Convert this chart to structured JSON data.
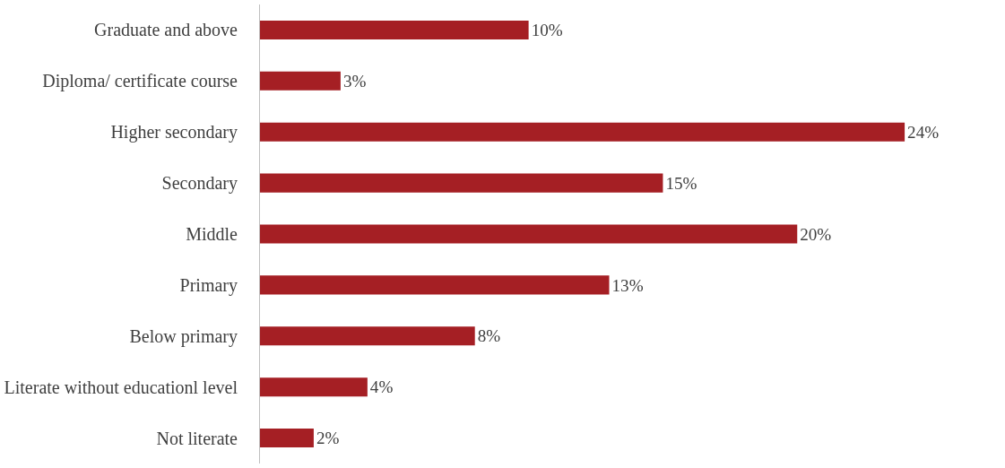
{
  "chart_data": {
    "type": "bar",
    "orientation": "horizontal",
    "categories": [
      "Graduate and above",
      "Diploma/ certificate course",
      "Higher secondary",
      "Secondary",
      "Middle",
      "Primary",
      "Below primary",
      "Literate without educationl level",
      "Not literate"
    ],
    "values": [
      10,
      3,
      24,
      15,
      20,
      13,
      8,
      4,
      2
    ],
    "value_labels": [
      "10%",
      "3%",
      "24%",
      "15%",
      "20%",
      "13%",
      "8%",
      "4%",
      "2%"
    ],
    "color": "#a51f24",
    "grid": false,
    "legend": false
  }
}
